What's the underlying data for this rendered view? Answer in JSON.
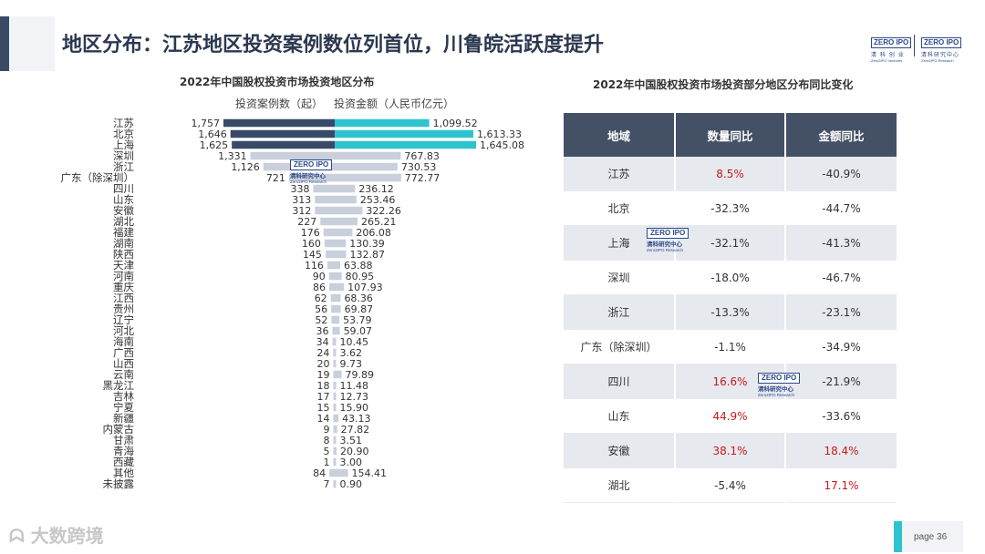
{
  "header": {
    "title": "地区分布：江苏地区投资案例数位列首位，川鲁皖活跃度提升"
  },
  "logos": {
    "zero2ipo_ventures": {
      "box": "ZERO IPO",
      "zh": "清 科 创 业",
      "en": "Zero2IPO Ventures"
    },
    "zero2ipo_research": {
      "box": "ZERO IPO",
      "zh": "清科研究中心",
      "en": "Zero2IPO Research"
    }
  },
  "watermark": {
    "box": "ZERO IPO",
    "zh": "清科研究中心",
    "en": "Zero2IPO Research"
  },
  "colors": {
    "cases_top": "#384a68",
    "amount_top": "#2ec4cf",
    "bar_light": "#c9cfdb",
    "positive": "#c8191e",
    "table_header": "#445066"
  },
  "chart_data": {
    "type": "bar",
    "title": "2022年中国股权投资市场投资地区分布",
    "series": [
      {
        "name": "投资案例数（起）",
        "direction": "left",
        "values": [
          1757,
          1646,
          1625,
          1331,
          1126,
          721,
          338,
          313,
          312,
          227,
          176,
          160,
          145,
          116,
          90,
          86,
          62,
          56,
          52,
          36,
          34,
          24,
          20,
          19,
          18,
          17,
          15,
          14,
          9,
          8,
          5,
          1,
          84,
          7
        ],
        "labels": [
          "1,757",
          "1,646",
          "1,625",
          "1,331",
          "1,126",
          "721",
          "338",
          "313",
          "312",
          "227",
          "176",
          "160",
          "145",
          "116",
          "90",
          "86",
          "62",
          "56",
          "52",
          "36",
          "34",
          "24",
          "20",
          "19",
          "18",
          "17",
          "15",
          "14",
          "9",
          "8",
          "5",
          "1",
          "84",
          "7"
        ]
      },
      {
        "name": "投资金额（人民币亿元）",
        "direction": "right",
        "values": [
          1099.52,
          1613.33,
          1645.08,
          767.83,
          730.53,
          772.77,
          236.12,
          253.46,
          322.26,
          265.21,
          206.08,
          130.39,
          132.87,
          63.88,
          80.95,
          107.93,
          68.36,
          69.87,
          53.79,
          59.07,
          10.45,
          3.62,
          9.73,
          79.89,
          11.48,
          12.73,
          15.9,
          43.13,
          27.82,
          3.51,
          20.9,
          3.0,
          154.41,
          0.9
        ],
        "labels": [
          "1,099.52",
          "1,613.33",
          "1,645.08",
          "767.83",
          "730.53",
          "772.77",
          "236.12",
          "253.46",
          "322.26",
          "265.21",
          "206.08",
          "130.39",
          "132.87",
          "63.88",
          "80.95",
          "107.93",
          "68.36",
          "69.87",
          "53.79",
          "59.07",
          "10.45",
          "3.62",
          "9.73",
          "79.89",
          "11.48",
          "12.73",
          "15.90",
          "43.13",
          "27.82",
          "3.51",
          "20.90",
          "3.00",
          "154.41",
          "0.90"
        ]
      }
    ],
    "categories": [
      "江苏",
      "北京",
      "上海",
      "深圳",
      "浙江",
      "广东（除深圳）",
      "四川",
      "山东",
      "安徽",
      "湖北",
      "福建",
      "湖南",
      "陕西",
      "天津",
      "河南",
      "重庆",
      "江西",
      "贵州",
      "辽宁",
      "河北",
      "海南",
      "广西",
      "山西",
      "云南",
      "黑龙江",
      "吉林",
      "宁夏",
      "新疆",
      "内蒙古",
      "甘肃",
      "青海",
      "西藏",
      "其他",
      "未披露"
    ],
    "highlight_top": 3
  },
  "table": {
    "title": "2022年中国股权投资市场投资部分地区分布同比变化",
    "headers": [
      "地域",
      "数量同比",
      "金额同比"
    ],
    "rows": [
      {
        "region": "江苏",
        "count": "8.5%",
        "amount": "-40.9%",
        "count_pos": true,
        "amount_pos": false
      },
      {
        "region": "北京",
        "count": "-32.3%",
        "amount": "-44.7%",
        "count_pos": false,
        "amount_pos": false
      },
      {
        "region": "上海",
        "count": "-32.1%",
        "amount": "-41.3%",
        "count_pos": false,
        "amount_pos": false
      },
      {
        "region": "深圳",
        "count": "-18.0%",
        "amount": "-46.7%",
        "count_pos": false,
        "amount_pos": false
      },
      {
        "region": "浙江",
        "count": "-13.3%",
        "amount": "-23.1%",
        "count_pos": false,
        "amount_pos": false
      },
      {
        "region": "广东（除深圳）",
        "count": "-1.1%",
        "amount": "-34.9%",
        "count_pos": false,
        "amount_pos": false
      },
      {
        "region": "四川",
        "count": "16.6%",
        "amount": "-21.9%",
        "count_pos": true,
        "amount_pos": false
      },
      {
        "region": "山东",
        "count": "44.9%",
        "amount": "-33.6%",
        "count_pos": true,
        "amount_pos": false
      },
      {
        "region": "安徽",
        "count": "38.1%",
        "amount": "18.4%",
        "count_pos": true,
        "amount_pos": true
      },
      {
        "region": "湖北",
        "count": "-5.4%",
        "amount": "17.1%",
        "count_pos": false,
        "amount_pos": true
      }
    ]
  },
  "footer": {
    "brand": "大数跨境",
    "page_label": "page  36"
  }
}
